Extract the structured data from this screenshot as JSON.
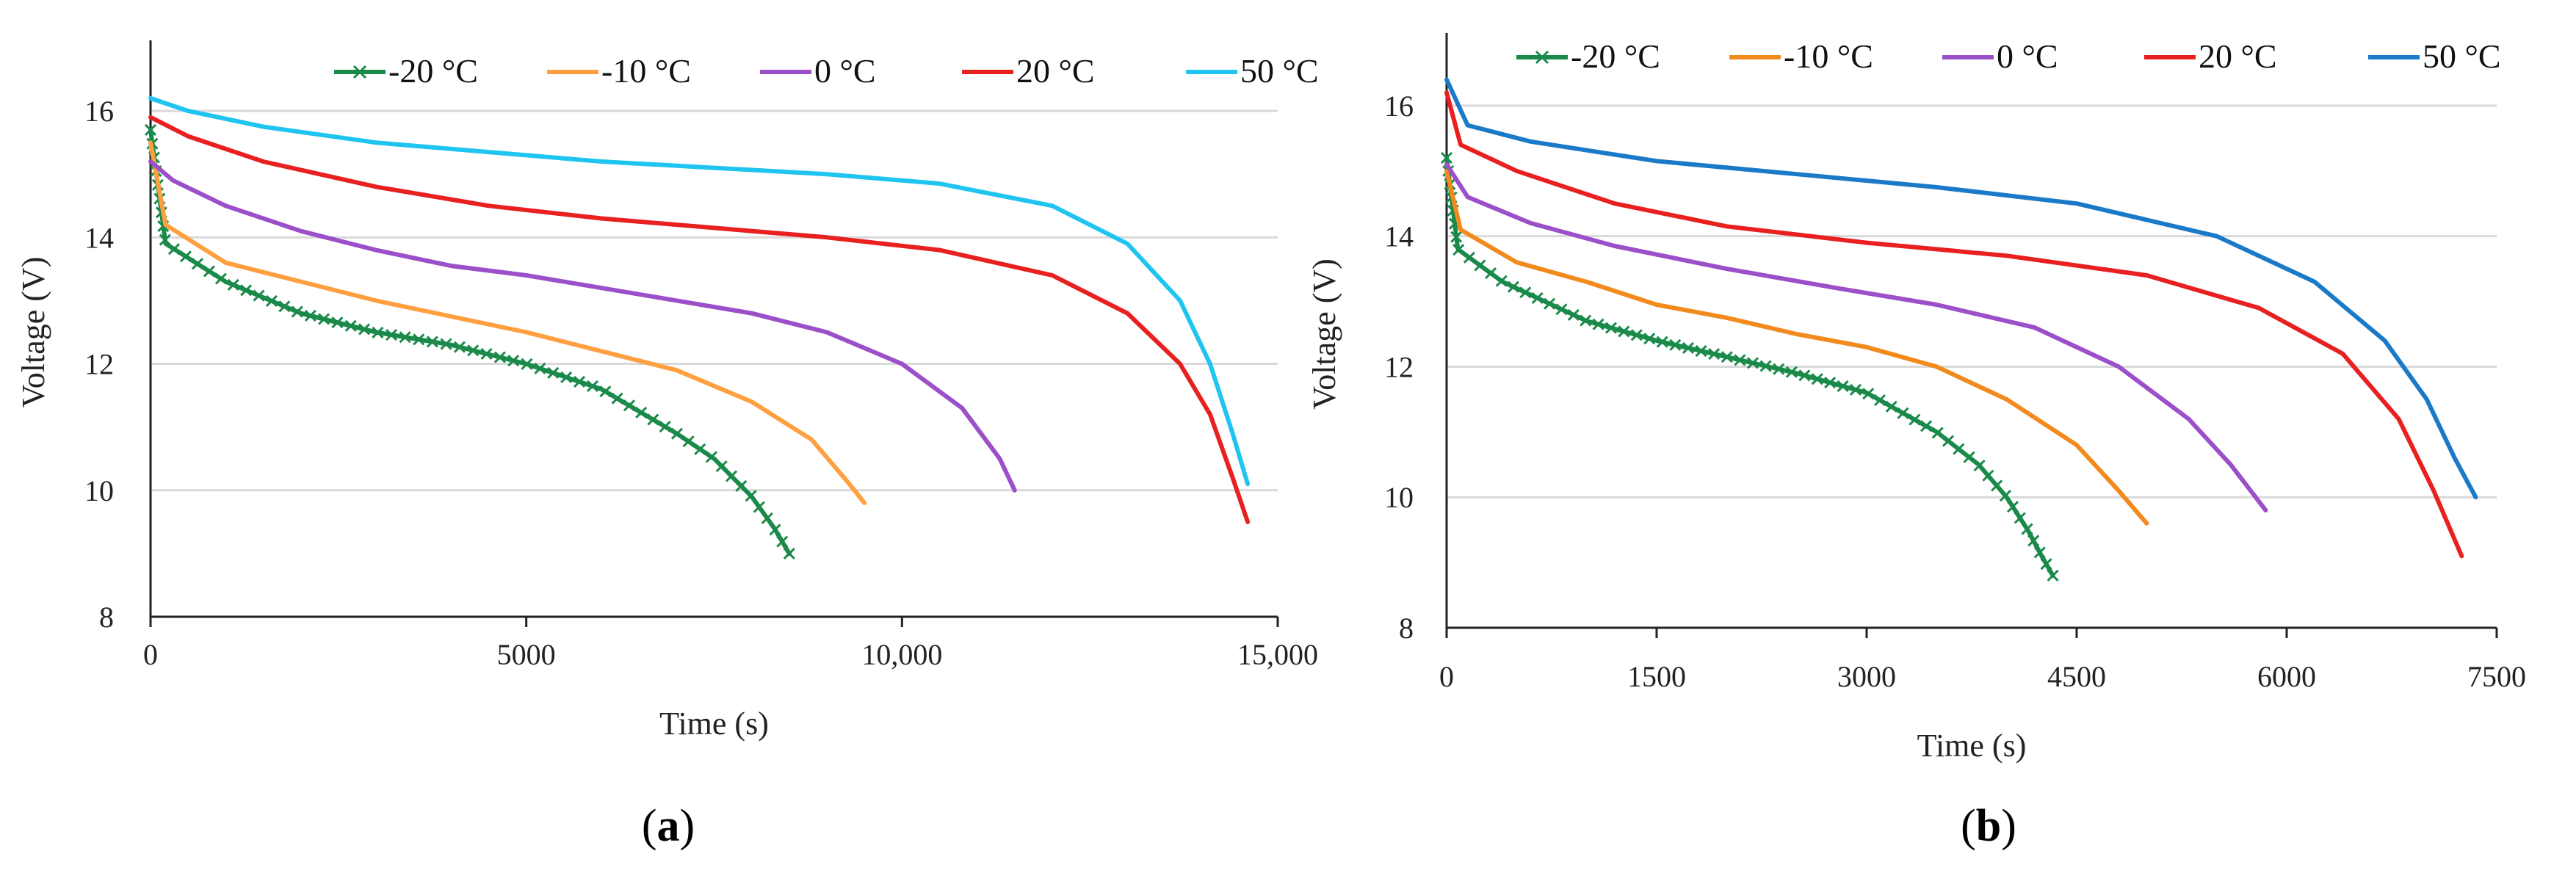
{
  "figure": {
    "captions": [
      {
        "open": "(",
        "letter": "a",
        "close": ")"
      },
      {
        "open": "(",
        "letter": "b",
        "close": ")"
      }
    ]
  },
  "chart_data": [
    {
      "type": "line",
      "panel": "a",
      "title": "",
      "xlabel": "Time (s)",
      "ylabel": "Voltage  (V)",
      "xlim": [
        0,
        15000
      ],
      "ylim": [
        8,
        17
      ],
      "xticks": [
        0,
        5000,
        10000,
        15000
      ],
      "xtick_labels": [
        "0",
        "5000",
        "10,000",
        "15,000"
      ],
      "yticks": [
        8,
        10,
        12,
        14,
        16
      ],
      "ytick_labels": [
        "8",
        "10",
        "12",
        "14",
        "16"
      ],
      "grid": "horizontal",
      "legend_position": "top",
      "series": [
        {
          "name": "-20 °C",
          "color": "#1a8a4a",
          "marker": "x",
          "x": [
            0,
            200,
            1000,
            2000,
            3000,
            4000,
            5000,
            6000,
            7000,
            7500,
            8000,
            8300,
            8500
          ],
          "y": [
            15.7,
            13.9,
            13.3,
            12.8,
            12.5,
            12.3,
            12.0,
            11.6,
            10.9,
            10.5,
            9.9,
            9.4,
            9.0
          ]
        },
        {
          "name": "-10 °C",
          "color": "#ffa040",
          "x": [
            0,
            200,
            1000,
            2000,
            3000,
            4000,
            5000,
            6000,
            7000,
            8000,
            8800,
            9300,
            9500
          ],
          "y": [
            15.5,
            14.2,
            13.6,
            13.3,
            13.0,
            12.75,
            12.5,
            12.2,
            11.9,
            11.4,
            10.8,
            10.1,
            9.8
          ]
        },
        {
          "name": "0 °C",
          "color": "#9b4fc8",
          "x": [
            0,
            300,
            1000,
            2000,
            3000,
            4000,
            5000,
            6000,
            7000,
            8000,
            9000,
            10000,
            10800,
            11300,
            11500
          ],
          "y": [
            15.2,
            14.9,
            14.5,
            14.1,
            13.8,
            13.55,
            13.4,
            13.2,
            13.0,
            12.8,
            12.5,
            12.0,
            11.3,
            10.5,
            10.0
          ]
        },
        {
          "name": "20 °C",
          "color": "#e82020",
          "x": [
            0,
            500,
            1500,
            3000,
            4500,
            6000,
            7500,
            9000,
            10500,
            12000,
            13000,
            13700,
            14100,
            14400,
            14600
          ],
          "y": [
            15.9,
            15.6,
            15.2,
            14.8,
            14.5,
            14.3,
            14.15,
            14.0,
            13.8,
            13.4,
            12.8,
            12.0,
            11.2,
            10.2,
            9.5
          ]
        },
        {
          "name": "50 °C",
          "color": "#20c4f0",
          "x": [
            0,
            500,
            1500,
            3000,
            4500,
            6000,
            7500,
            9000,
            10500,
            12000,
            13000,
            13700,
            14100,
            14400,
            14600
          ],
          "y": [
            16.2,
            16.0,
            15.75,
            15.5,
            15.35,
            15.2,
            15.1,
            15.0,
            14.85,
            14.5,
            13.9,
            13.0,
            12.0,
            10.9,
            10.1
          ]
        }
      ]
    },
    {
      "type": "line",
      "panel": "b",
      "title": "",
      "xlabel": "Time (s)",
      "ylabel": "Voltage  (V)",
      "xlim": [
        0,
        7500
      ],
      "ylim": [
        8,
        17
      ],
      "xticks": [
        0,
        1500,
        3000,
        4500,
        6000,
        7500
      ],
      "xtick_labels": [
        "0",
        "1500",
        "3000",
        "4500",
        "6000",
        "7500"
      ],
      "yticks": [
        8,
        10,
        12,
        14,
        16
      ],
      "ytick_labels": [
        "8",
        "10",
        "12",
        "14",
        "16"
      ],
      "grid": "horizontal",
      "legend_position": "top",
      "series": [
        {
          "name": "-20 °C",
          "color": "#1a8a4a",
          "marker": "x",
          "x": [
            0,
            80,
            400,
            1000,
            1500,
            2000,
            2500,
            3000,
            3500,
            3800,
            4000,
            4150,
            4250,
            4330
          ],
          "y": [
            15.2,
            13.8,
            13.3,
            12.7,
            12.4,
            12.15,
            11.9,
            11.6,
            11.0,
            10.5,
            10.0,
            9.5,
            9.1,
            8.8
          ]
        },
        {
          "name": "-10 °C",
          "color": "#f28a1e",
          "x": [
            0,
            100,
            500,
            1000,
            1500,
            2000,
            2500,
            3000,
            3500,
            4000,
            4500,
            4800,
            5000
          ],
          "y": [
            15.0,
            14.1,
            13.6,
            13.3,
            12.95,
            12.75,
            12.5,
            12.3,
            12.0,
            11.5,
            10.8,
            10.1,
            9.6
          ]
        },
        {
          "name": "0 °C",
          "color": "#9b4fc8",
          "x": [
            0,
            150,
            600,
            1200,
            2000,
            2800,
            3500,
            4200,
            4800,
            5300,
            5600,
            5850
          ],
          "y": [
            15.1,
            14.6,
            14.2,
            13.85,
            13.5,
            13.2,
            12.95,
            12.6,
            12.0,
            11.2,
            10.5,
            9.8
          ]
        },
        {
          "name": "20 °C",
          "color": "#e82020",
          "x": [
            0,
            100,
            500,
            1200,
            2000,
            3000,
            4000,
            5000,
            5800,
            6400,
            6800,
            7050,
            7250
          ],
          "y": [
            16.2,
            15.4,
            15.0,
            14.5,
            14.15,
            13.9,
            13.7,
            13.4,
            12.9,
            12.2,
            11.2,
            10.1,
            9.1
          ]
        },
        {
          "name": "50 °C",
          "color": "#1a7ac8",
          "x": [
            0,
            150,
            600,
            1500,
            2500,
            3500,
            4500,
            5500,
            6200,
            6700,
            7000,
            7200,
            7350
          ],
          "y": [
            16.4,
            15.7,
            15.45,
            15.15,
            14.95,
            14.75,
            14.5,
            14.0,
            13.3,
            12.4,
            11.5,
            10.6,
            10.0
          ]
        }
      ]
    }
  ]
}
